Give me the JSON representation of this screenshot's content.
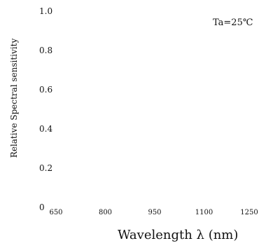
{
  "chart_data": {
    "type": "line",
    "title": "",
    "annotation": "Ta=25℃",
    "xlabel": "Wavelength λ (nm)",
    "ylabel": "Relative Spectral sensitivity",
    "x_ticks": [
      {
        "value": 650,
        "label": "650"
      },
      {
        "value": 800,
        "label": "800"
      },
      {
        "value": 950,
        "label": "950"
      },
      {
        "value": 1100,
        "label": "1100"
      },
      {
        "value": 1250,
        "label": "1250"
      }
    ],
    "y_ticks": [
      {
        "value": 0,
        "label": "0"
      },
      {
        "value": 0.2,
        "label": "0.2"
      },
      {
        "value": 0.4,
        "label": "0.4"
      },
      {
        "value": 0.6,
        "label": "0.6"
      },
      {
        "value": 0.8,
        "label": "0.8"
      },
      {
        "value": 1.0,
        "label": "1.0"
      }
    ],
    "xlim": [
      650,
      1250
    ],
    "ylim": [
      0,
      1.0
    ],
    "grid": false,
    "series": []
  }
}
